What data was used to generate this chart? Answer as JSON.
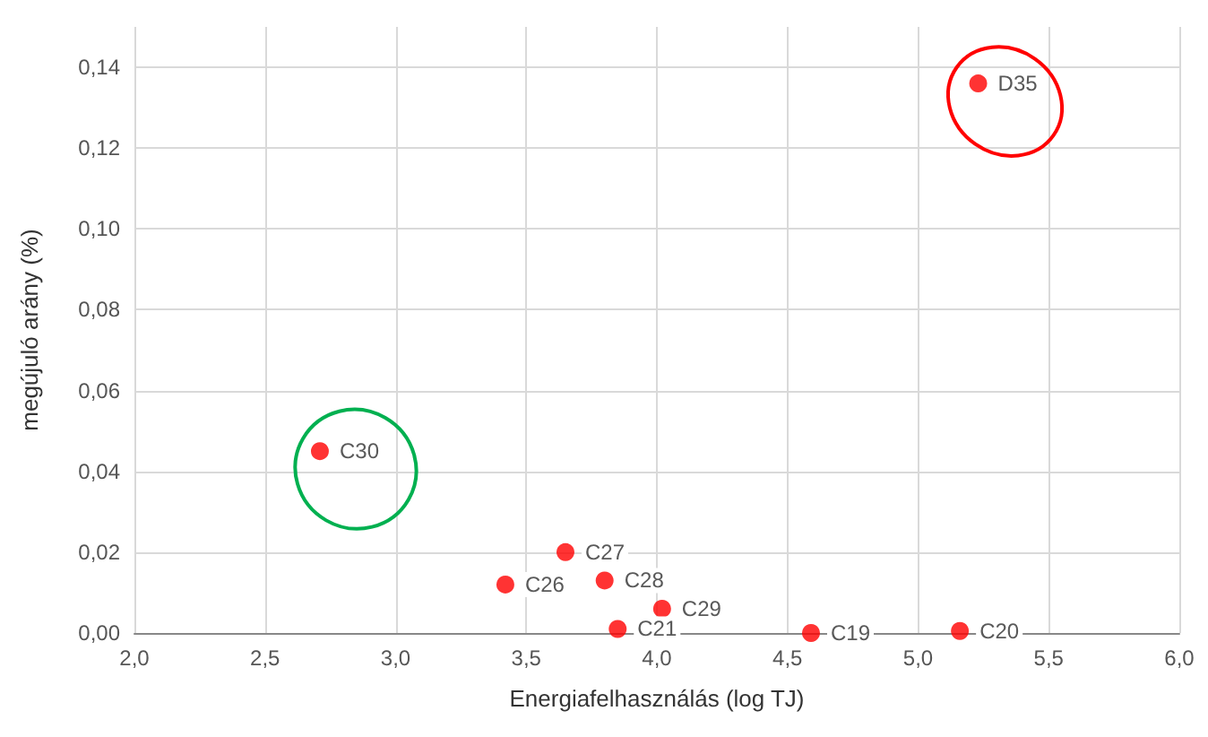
{
  "chart_data": {
    "type": "scatter",
    "xlabel": "Energiafelhasználás (log TJ)",
    "ylabel": "megújuló arány (%)",
    "x": [
      5.23,
      2.71,
      3.65,
      3.42,
      3.8,
      4.02,
      3.85,
      4.59,
      5.16
    ],
    "values": [
      0.136,
      0.045,
      0.02,
      0.012,
      0.013,
      0.006,
      0.001,
      0,
      0.0005
    ],
    "color": "#ff0000",
    "marker": "circle",
    "xlim": [
      2,
      6
    ],
    "xticks": [
      {
        "value": 2,
        "label": "2,0"
      },
      {
        "value": 2.5,
        "label": "2,5"
      },
      {
        "value": 3,
        "label": "3,0"
      },
      {
        "value": 3.5,
        "label": "3,5"
      },
      {
        "value": 4,
        "label": "4,0"
      },
      {
        "value": 4.5,
        "label": "4,5"
      },
      {
        "value": 5,
        "label": "5,0"
      },
      {
        "value": 5.5,
        "label": "5,5"
      },
      {
        "value": 6,
        "label": "6,0"
      }
    ],
    "ylim": [
      0,
      0.15
    ],
    "yticks": [
      {
        "value": 0,
        "label": "0,00"
      },
      {
        "value": 0.02,
        "label": "0,02"
      },
      {
        "value": 0.04,
        "label": "0,04"
      },
      {
        "value": 0.06,
        "label": "0,06"
      },
      {
        "value": 0.08,
        "label": "0,08"
      },
      {
        "value": 0.1,
        "label": "0,10"
      },
      {
        "value": 0.12,
        "label": "0,12"
      },
      {
        "value": 0.14,
        "label": "0,14"
      }
    ],
    "grid": true,
    "annotations": [
      {
        "text": "D35",
        "x": 5.23,
        "y": 0.136
      },
      {
        "text": "C30",
        "x": 2.71,
        "y": 0.045
      },
      {
        "text": "C27",
        "x": 3.65,
        "y": 0.02
      },
      {
        "text": "C26",
        "x": 3.42,
        "y": 0.012
      },
      {
        "text": "C28",
        "x": 3.8,
        "y": 0.013
      },
      {
        "text": "C29",
        "x": 4.02,
        "y": 0.006
      },
      {
        "text": "C21",
        "x": 3.85,
        "y": 0.001
      },
      {
        "text": "C19",
        "x": 4.59,
        "y": 0
      },
      {
        "text": "C20",
        "x": 5.16,
        "y": 0.0005
      }
    ]
  }
}
